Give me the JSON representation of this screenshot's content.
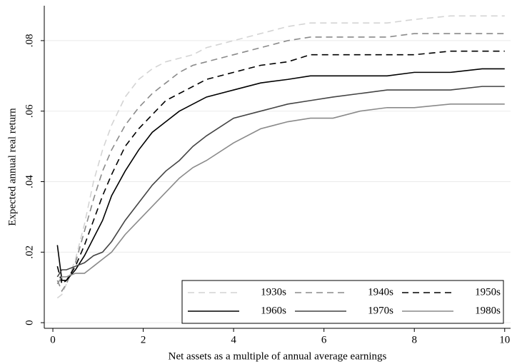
{
  "chart_data": {
    "type": "line",
    "x_label": "Net assets as a multiple of annual average earnings",
    "y_label": "Expected annual real return",
    "x": [
      0.1,
      0.2,
      0.3,
      0.5,
      0.7,
      0.9,
      1.1,
      1.3,
      1.6,
      1.9,
      2.2,
      2.5,
      2.8,
      3.1,
      3.4,
      4,
      4.6,
      5.2,
      5.7,
      6.2,
      6.8,
      7.4,
      8,
      8.8,
      9.5,
      10
    ],
    "series": [
      {
        "name": "1930s",
        "color": "#d4d4d4",
        "style": "dashed",
        "values": [
          0.007,
          0.008,
          0.011,
          0.018,
          0.028,
          0.04,
          0.049,
          0.056,
          0.064,
          0.069,
          0.072,
          0.074,
          0.075,
          0.076,
          0.078,
          0.08,
          0.082,
          0.084,
          0.085,
          0.085,
          0.085,
          0.085,
          0.086,
          0.087,
          0.087,
          0.087
        ]
      },
      {
        "name": "1940s",
        "color": "#8a8a8a",
        "style": "dashed",
        "values": [
          0.012,
          0.009,
          0.011,
          0.017,
          0.026,
          0.035,
          0.043,
          0.049,
          0.056,
          0.061,
          0.065,
          0.068,
          0.071,
          0.073,
          0.074,
          0.076,
          0.078,
          0.08,
          0.081,
          0.081,
          0.081,
          0.081,
          0.082,
          0.082,
          0.082,
          0.082
        ]
      },
      {
        "name": "1950s",
        "color": "#000000",
        "style": "dashed",
        "values": [
          0.016,
          0.011,
          0.012,
          0.016,
          0.022,
          0.029,
          0.036,
          0.042,
          0.05,
          0.055,
          0.059,
          0.063,
          0.065,
          0.067,
          0.069,
          0.071,
          0.073,
          0.074,
          0.076,
          0.076,
          0.076,
          0.076,
          0.076,
          0.077,
          0.077,
          0.077
        ]
      },
      {
        "name": "1960s",
        "color": "#000000",
        "style": "solid",
        "values": [
          0.022,
          0.012,
          0.012,
          0.015,
          0.019,
          0.024,
          0.029,
          0.036,
          0.043,
          0.049,
          0.054,
          0.057,
          0.06,
          0.062,
          0.064,
          0.066,
          0.068,
          0.069,
          0.07,
          0.07,
          0.07,
          0.07,
          0.071,
          0.071,
          0.072,
          0.072
        ]
      },
      {
        "name": "1970s",
        "color": "#444444",
        "style": "solid",
        "values": [
          0.013,
          0.015,
          0.015,
          0.016,
          0.017,
          0.019,
          0.02,
          0.023,
          0.029,
          0.034,
          0.039,
          0.043,
          0.046,
          0.05,
          0.053,
          0.058,
          0.06,
          0.062,
          0.063,
          0.064,
          0.065,
          0.066,
          0.066,
          0.066,
          0.067,
          0.067
        ]
      },
      {
        "name": "1980s",
        "color": "#8a8a8a",
        "style": "solid",
        "values": [
          0.011,
          0.013,
          0.013,
          0.014,
          0.014,
          0.016,
          0.018,
          0.02,
          0.025,
          0.029,
          0.033,
          0.037,
          0.041,
          0.044,
          0.046,
          0.051,
          0.055,
          0.057,
          0.058,
          0.058,
          0.06,
          0.061,
          0.061,
          0.062,
          0.062,
          0.062
        ]
      }
    ],
    "xlim": [
      -0.19,
      10.13
    ],
    "xticks": [
      0,
      2,
      4,
      6,
      8,
      10
    ],
    "ylim": [
      -0.0016,
      0.0899
    ],
    "yticks": [
      0,
      {
        "value": 0.02,
        "label": ".02"
      },
      {
        "value": 0.04,
        "label": ".04"
      },
      {
        "value": 0.06,
        "label": ".06"
      },
      {
        "value": 0.08,
        "label": ".08"
      }
    ],
    "grid": true,
    "legend": "bottom-right"
  }
}
